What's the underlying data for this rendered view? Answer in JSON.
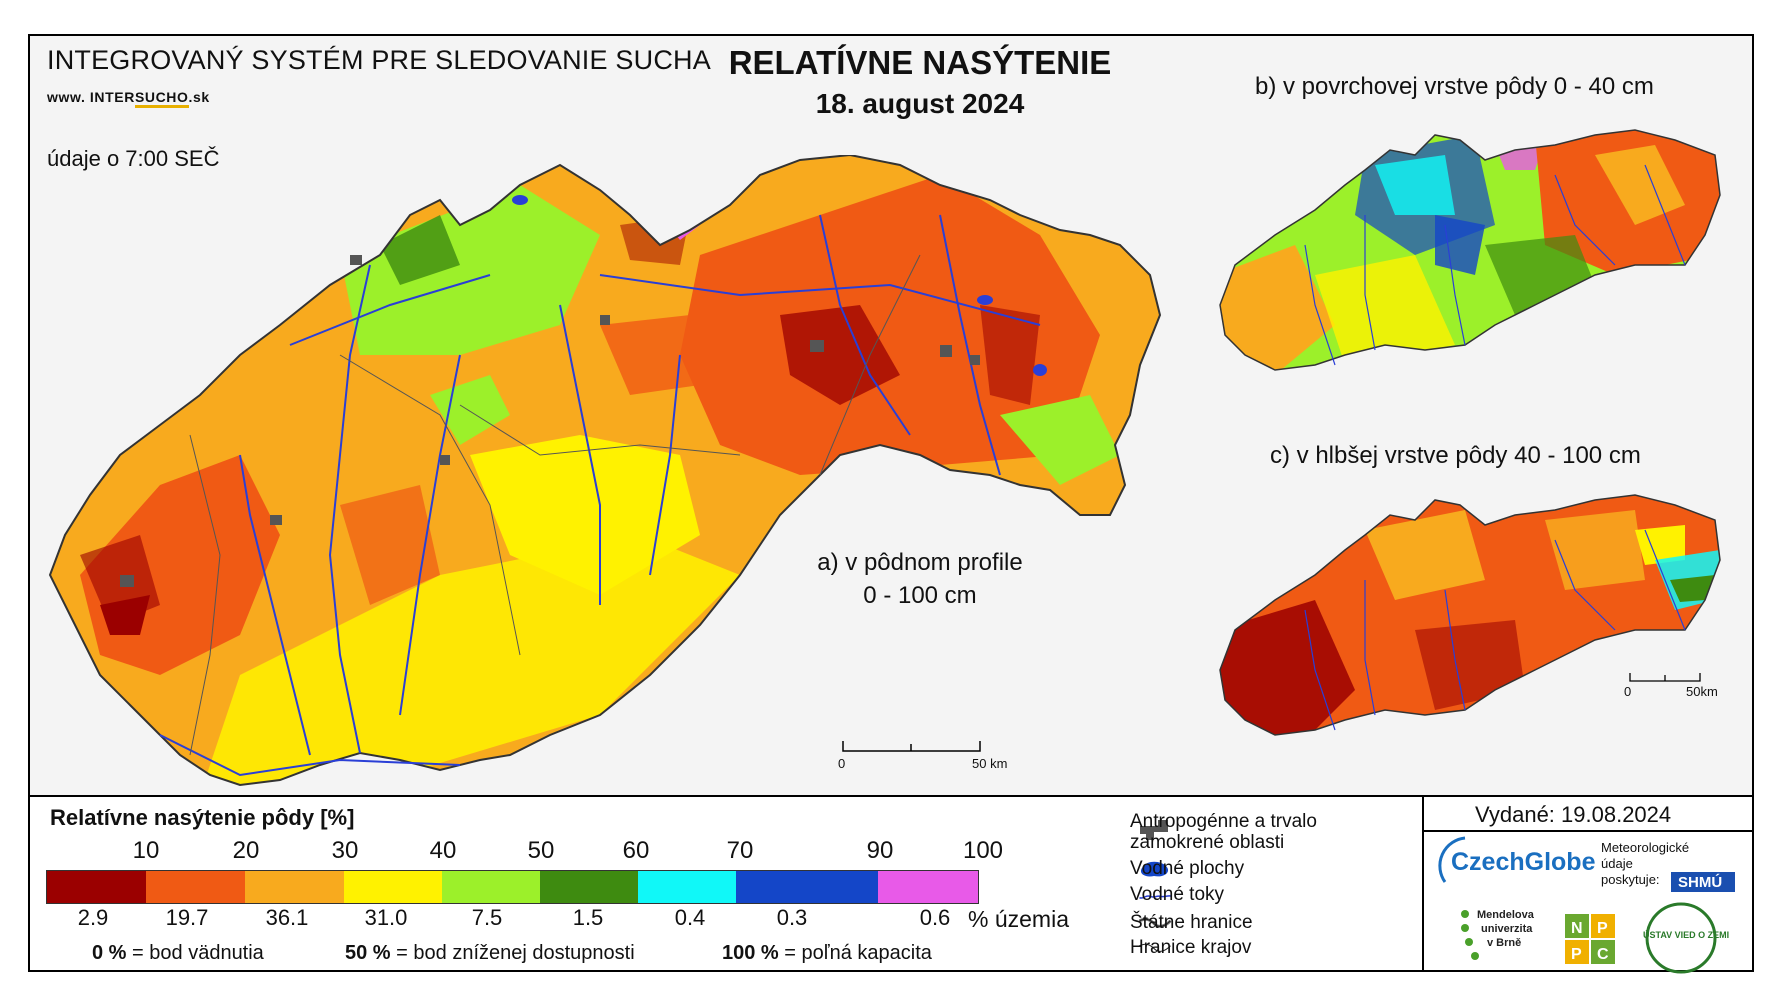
{
  "header": {
    "system_title": "INTEGROVANÝ SYSTÉM PRE SLEDOVANIE SUCHA",
    "site_prefix": "www. INTER",
    "site_highlight": "SUCHO",
    "site_suffix": ".sk",
    "data_time": "údaje o 7:00 SEČ",
    "main_title": "RELATÍVNE NASÝTENIE",
    "date": "18. august 2024"
  },
  "maps": {
    "a_label_line1": "a) v pôdnom profile",
    "a_label_line2": "0 - 100 cm",
    "b_label": "b) v povrchovej vrstve pôdy 0 - 40 cm",
    "c_label": "c) v hlbšej vrstve pôdy 40 - 100 cm",
    "scale_main": {
      "start": "0",
      "end": "50 km"
    },
    "scale_small": {
      "start": "0",
      "end": "50km"
    }
  },
  "legend": {
    "title": "Relatívne nasýtenie pôdy [%]",
    "ticks": [
      "10",
      "20",
      "30",
      "40",
      "50",
      "60",
      "70",
      "90",
      "100"
    ],
    "colors": [
      "#9b0000",
      "#f05a14",
      "#f8aa1e",
      "#fff200",
      "#9cf02a",
      "#3e8b10",
      "#10f8f8",
      "#1446c8",
      "#e85ae8"
    ],
    "shares": [
      "2.9",
      "19.7",
      "36.1",
      "31.0",
      "7.5",
      "1.5",
      "0.4",
      "0.3",
      "0.6"
    ],
    "share_unit": "% územia",
    "def1_value": "0 %",
    "def1_text": "= bod vädnutia",
    "def2_value": "50 %",
    "def2_text": "= bod zníženej dostupnosti",
    "def3_value": "100 %",
    "def3_text": "= poľná kapacita"
  },
  "map_key": {
    "anthropogenic_line1": "Antropogénne a trvalo",
    "anthropogenic_line2": "zamokrené oblasti",
    "water_bodies": "Vodné plochy",
    "water_courses": "Vodné toky",
    "state_border": "Štátne hranice",
    "regional_border": "Hranice krajov"
  },
  "issued": "Vydané: 19.08.2024",
  "providers": {
    "czechglobe": "CzechGlobe",
    "met_line1": "Meteorologické",
    "met_line2": "údaje",
    "met_line3": "poskytuje:",
    "shmu": "SHMÚ",
    "mendel_line1": "Mendelova",
    "mendel_line2": "univerzita",
    "mendel_line3": "v Brně",
    "nppc": [
      "N",
      "P",
      "P",
      "C"
    ],
    "uvz": "ÚSTAV VIED O ZEMI"
  },
  "colors": {
    "dark_red": "#9b0000",
    "orange_red": "#f05a14",
    "orange": "#f8aa1e",
    "yellow": "#fff200",
    "light_green": "#9cf02a",
    "dark_green": "#3e8b10",
    "cyan": "#10f8f8",
    "blue": "#1446c8",
    "magenta": "#e85ae8",
    "river": "#2a3fd6"
  }
}
